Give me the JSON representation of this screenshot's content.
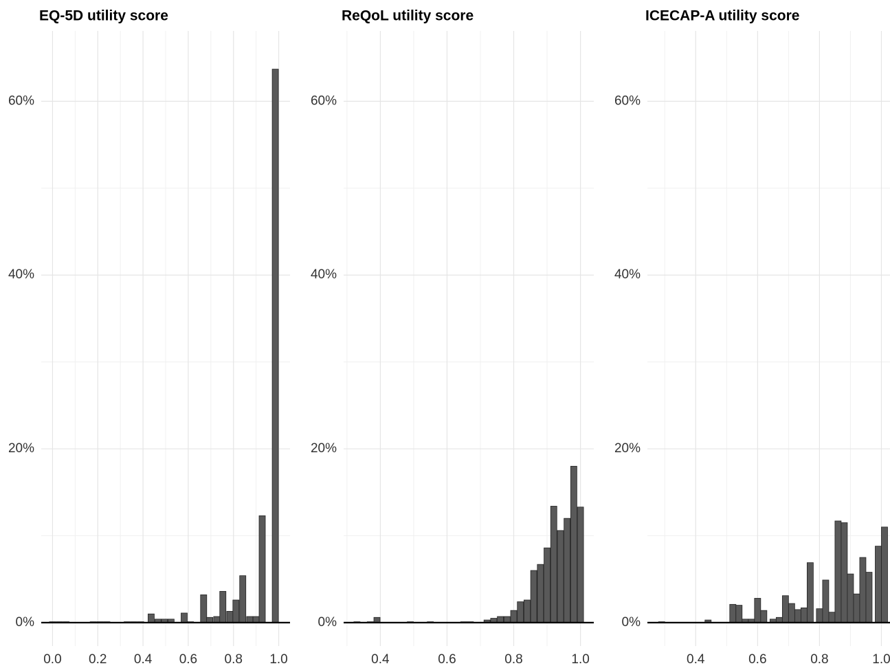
{
  "chart_data": [
    {
      "type": "bar",
      "title": "EQ-5D utility score",
      "color": "#595959",
      "x": [
        0.0,
        0.03,
        0.06,
        0.18,
        0.21,
        0.24,
        0.33,
        0.36,
        0.39,
        0.436,
        0.466,
        0.495,
        0.524,
        0.582,
        0.61,
        0.668,
        0.695,
        0.726,
        0.753,
        0.784,
        0.811,
        0.841,
        0.872,
        0.9,
        0.927,
        0.985
      ],
      "values": [
        0.1,
        0.1,
        0.1,
        0.1,
        0.1,
        0.1,
        0.1,
        0.1,
        0.1,
        1.0,
        0.4,
        0.4,
        0.4,
        1.1,
        0.1,
        3.2,
        0.6,
        0.7,
        3.6,
        1.3,
        2.6,
        5.4,
        0.7,
        0.7,
        12.3,
        63.7
      ],
      "xlim": [
        -0.05,
        1.05
      ],
      "ylim": [
        -2.7,
        68.1
      ],
      "xticks": [
        {
          "value": 0,
          "label": "0.0"
        },
        0.2,
        0.4,
        0.6,
        0.8,
        {
          "value": 1,
          "label": "1.0"
        }
      ],
      "yticks": [
        {
          "value": 0,
          "label": "0%"
        },
        {
          "value": 20,
          "label": "20%"
        },
        {
          "value": 40,
          "label": "40%"
        },
        {
          "value": 60,
          "label": "60%"
        }
      ],
      "grid": true
    },
    {
      "type": "bar",
      "title": "ReQoL utility score",
      "color": "#595959",
      "x": [
        0.33,
        0.37,
        0.39,
        0.49,
        0.55,
        0.65,
        0.67,
        0.72,
        0.74,
        0.76,
        0.78,
        0.8,
        0.82,
        0.84,
        0.86,
        0.88,
        0.9,
        0.92,
        0.94,
        0.96,
        0.98,
        1.0
      ],
      "values": [
        0.1,
        0.1,
        0.6,
        0.1,
        0.1,
        0.1,
        0.1,
        0.3,
        0.5,
        0.7,
        0.7,
        1.4,
        2.4,
        2.6,
        6.0,
        6.7,
        8.6,
        13.4,
        10.6,
        12.0,
        18.0,
        13.3
      ],
      "xlim": [
        0.29,
        1.04
      ],
      "ylim": [
        -2.7,
        68.1
      ],
      "xticks": [
        0.4,
        0.6,
        0.8,
        {
          "value": 1,
          "label": "1.0"
        }
      ],
      "yticks": [
        {
          "value": 0,
          "label": "0%"
        },
        {
          "value": 20,
          "label": "20%"
        },
        {
          "value": 40,
          "label": "40%"
        },
        {
          "value": 60,
          "label": "60%"
        }
      ],
      "grid": true
    },
    {
      "type": "bar",
      "title": "ICECAP-A utility score",
      "color": "#595959",
      "x": [
        0.29,
        0.44,
        0.52,
        0.54,
        0.56,
        0.58,
        0.6,
        0.62,
        0.65,
        0.67,
        0.69,
        0.71,
        0.73,
        0.75,
        0.77,
        0.8,
        0.82,
        0.84,
        0.86,
        0.88,
        0.9,
        0.92,
        0.94,
        0.96,
        0.99,
        1.01
      ],
      "values": [
        0.1,
        0.3,
        2.1,
        2.0,
        0.4,
        0.4,
        2.8,
        1.4,
        0.4,
        0.6,
        3.1,
        2.2,
        1.5,
        1.7,
        6.9,
        1.6,
        4.9,
        1.2,
        11.7,
        11.5,
        5.6,
        3.3,
        7.5,
        5.8,
        8.8,
        11.0
      ],
      "xlim": [
        0.244,
        1.07
      ],
      "ylim": [
        -2.7,
        68.1
      ],
      "xticks": [
        0.4,
        0.6,
        0.8,
        {
          "value": 1,
          "label": "1.0"
        }
      ],
      "yticks": [
        {
          "value": 0,
          "label": "0%"
        },
        {
          "value": 20,
          "label": "20%"
        },
        {
          "value": 40,
          "label": "40%"
        },
        {
          "value": 60,
          "label": "60%"
        }
      ],
      "grid": true
    }
  ]
}
